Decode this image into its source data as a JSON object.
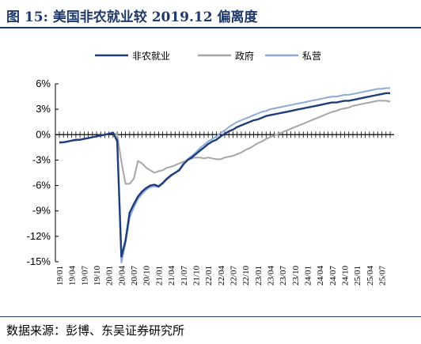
{
  "title": "图 15:  美国非农就业较 2019.12 偏离度",
  "source": "数据来源：彭博、东吴证券研究所",
  "chart_data": {
    "type": "line",
    "title": "美国非农就业较 2019.12 偏离度",
    "xlabel": "",
    "ylabel": "",
    "ylim": [
      -15,
      6
    ],
    "yticks": [
      "6%",
      "3%",
      "0%",
      "-3%",
      "-6%",
      "-9%",
      "-12%",
      "-15%"
    ],
    "ytick_values": [
      6,
      3,
      0,
      -3,
      -6,
      -9,
      -12,
      -15
    ],
    "x_start": "2019-01",
    "x_end": "2025-08",
    "xticks": [
      "19/01",
      "19/04",
      "19/07",
      "19/10",
      "20/01",
      "20/04",
      "20/07",
      "20/10",
      "21/01",
      "21/04",
      "21/07",
      "21/10",
      "22/01",
      "22/04",
      "22/07",
      "22/10",
      "23/01",
      "23/04",
      "23/07",
      "23/10",
      "24/01",
      "24/04",
      "24/07",
      "24/10",
      "25/01",
      "25/04",
      "25/07"
    ],
    "legend_position": "top-center",
    "grid": false,
    "series": [
      {
        "name": "非农就业",
        "color": "#1f3d7a",
        "values": [
          -0.9,
          -0.9,
          -0.8,
          -0.7,
          -0.6,
          -0.6,
          -0.5,
          -0.4,
          -0.3,
          -0.2,
          -0.1,
          0.0,
          0.1,
          0.2,
          -0.7,
          -14.4,
          -12.5,
          -9.2,
          -8.2,
          -7.3,
          -6.7,
          -6.3,
          -6.0,
          -5.9,
          -6.1,
          -5.7,
          -5.2,
          -4.8,
          -4.5,
          -4.2,
          -3.5,
          -3.0,
          -2.7,
          -2.3,
          -1.9,
          -1.5,
          -1.1,
          -0.8,
          -0.6,
          -0.2,
          0.1,
          0.4,
          0.6,
          0.9,
          1.1,
          1.3,
          1.5,
          1.7,
          1.8,
          2.0,
          2.2,
          2.3,
          2.4,
          2.5,
          2.6,
          2.7,
          2.8,
          2.9,
          3.0,
          3.1,
          3.2,
          3.3,
          3.4,
          3.5,
          3.6,
          3.7,
          3.8,
          3.8,
          3.9,
          4.0,
          4.0,
          4.1,
          4.2,
          4.3,
          4.4,
          4.5,
          4.6,
          4.7,
          4.8,
          4.9,
          4.9
        ]
      },
      {
        "name": "政府",
        "color": "#a6a6a6",
        "values": [
          -1.0,
          -0.9,
          -0.8,
          -0.7,
          -0.7,
          -0.6,
          -0.5,
          -0.4,
          -0.3,
          -0.2,
          -0.1,
          0.0,
          0.1,
          0.2,
          0.0,
          -3.2,
          -5.8,
          -5.8,
          -5.2,
          -3.1,
          -3.4,
          -3.9,
          -4.2,
          -4.5,
          -4.3,
          -4.2,
          -3.9,
          -3.8,
          -3.6,
          -3.4,
          -3.2,
          -3.0,
          -2.8,
          -2.7,
          -2.7,
          -2.8,
          -2.7,
          -2.8,
          -2.9,
          -2.9,
          -2.7,
          -2.6,
          -2.5,
          -2.3,
          -2.1,
          -1.8,
          -1.6,
          -1.3,
          -1.0,
          -0.8,
          -0.5,
          -0.3,
          -0.1,
          0.1,
          0.3,
          0.5,
          0.7,
          0.9,
          1.1,
          1.3,
          1.5,
          1.7,
          1.9,
          2.1,
          2.3,
          2.5,
          2.7,
          2.8,
          3.0,
          3.1,
          3.2,
          3.4,
          3.5,
          3.6,
          3.7,
          3.8,
          3.9,
          4.0,
          4.0,
          4.0,
          3.9
        ]
      },
      {
        "name": "私营",
        "color": "#8eaadb",
        "values": [
          -1.0,
          -0.9,
          -0.8,
          -0.7,
          -0.6,
          -0.6,
          -0.5,
          -0.4,
          -0.3,
          -0.2,
          -0.1,
          0.0,
          0.1,
          0.3,
          -0.9,
          -15.1,
          -12.8,
          -9.8,
          -8.6,
          -7.6,
          -7.0,
          -6.5,
          -6.2,
          -6.1,
          -6.2,
          -5.8,
          -5.3,
          -4.9,
          -4.5,
          -4.1,
          -3.4,
          -2.9,
          -2.5,
          -2.1,
          -1.6,
          -1.2,
          -0.8,
          -0.5,
          -0.2,
          0.2,
          0.5,
          0.9,
          1.2,
          1.5,
          1.7,
          1.9,
          2.1,
          2.3,
          2.5,
          2.7,
          2.8,
          3.0,
          3.1,
          3.2,
          3.3,
          3.4,
          3.5,
          3.6,
          3.7,
          3.8,
          3.9,
          4.0,
          4.1,
          4.2,
          4.3,
          4.4,
          4.5,
          4.5,
          4.6,
          4.7,
          4.7,
          4.8,
          4.9,
          5.0,
          5.1,
          5.2,
          5.3,
          5.4,
          5.4,
          5.5,
          5.5
        ]
      }
    ]
  }
}
